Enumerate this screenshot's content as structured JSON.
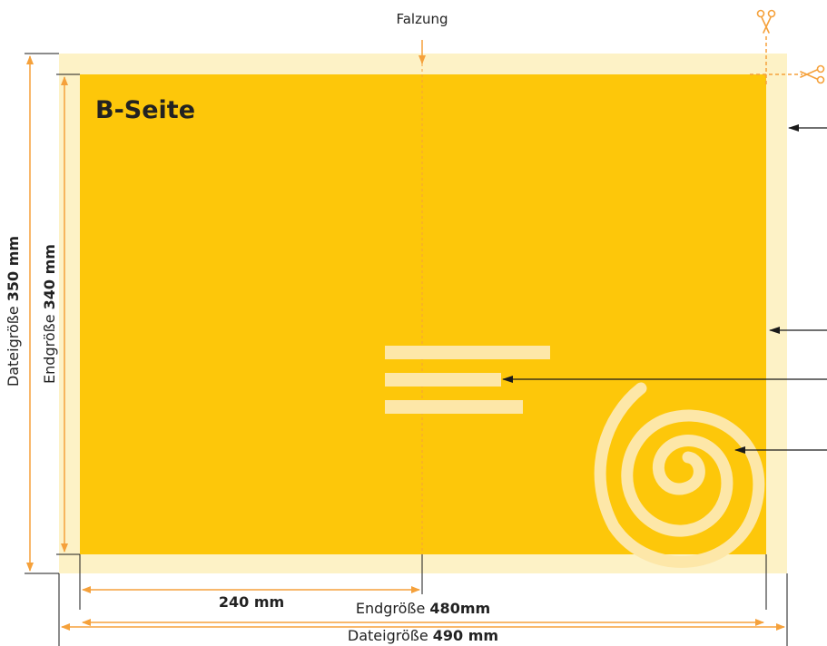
{
  "diagram": {
    "fold_label": "Falzung",
    "side_title": "B-Seite",
    "dims": {
      "half_width": "240 mm",
      "final_width_label": "Endgröße",
      "final_width_value": "480mm",
      "file_width_label": "Dateigröße",
      "file_width_value": "490 mm",
      "final_height_label": "Endgröße",
      "final_height_value": "340 mm",
      "file_height_label": "Dateigröße",
      "file_height_value": "350 mm"
    },
    "colors": {
      "bleed": "#FDF2C6",
      "page": "#FDC70A",
      "accent": "#F5A13B",
      "arrow": "#1a1a1a",
      "shape": "#FDE7A8"
    },
    "icons": [
      "scissors-icon",
      "scissors-icon"
    ]
  }
}
